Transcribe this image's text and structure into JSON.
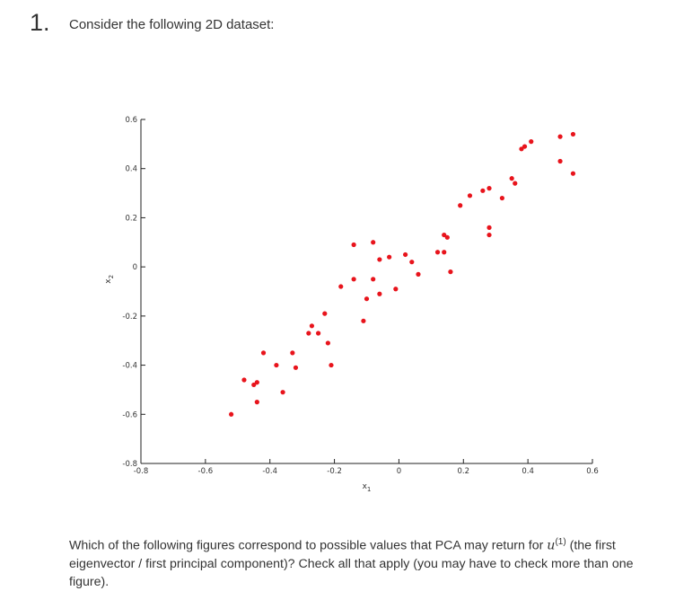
{
  "question": {
    "number": "1.",
    "prompt": "Consider the following 2D dataset:",
    "footer_before": "Which of the following figures correspond to possible values that PCA may return for ",
    "footer_var": "u",
    "footer_sup": "(1)",
    "footer_after": " (the first eigenvector / first principal component)? Check all that apply (you may have to check more than one figure)."
  },
  "chart_data": {
    "type": "scatter",
    "xlabel": "x1",
    "ylabel": "x2",
    "xlim": [
      -0.8,
      0.6
    ],
    "ylim": [
      -0.8,
      0.6
    ],
    "xticks": [
      "-0.8",
      "-0.6",
      "-0.4",
      "-0.2",
      "0",
      "0.2",
      "0.4",
      "0.6"
    ],
    "yticks": [
      "0.6",
      "0.4",
      "0.2",
      "0",
      "-0.2",
      "-0.4",
      "-0.6",
      "-0.8"
    ],
    "point_color": "#e8141c",
    "points": [
      {
        "x": -0.52,
        "y": -0.6
      },
      {
        "x": -0.48,
        "y": -0.46
      },
      {
        "x": -0.45,
        "y": -0.48
      },
      {
        "x": -0.44,
        "y": -0.47
      },
      {
        "x": -0.44,
        "y": -0.55
      },
      {
        "x": -0.42,
        "y": -0.35
      },
      {
        "x": -0.38,
        "y": -0.4
      },
      {
        "x": -0.36,
        "y": -0.51
      },
      {
        "x": -0.33,
        "y": -0.35
      },
      {
        "x": -0.32,
        "y": -0.41
      },
      {
        "x": -0.28,
        "y": -0.27
      },
      {
        "x": -0.27,
        "y": -0.24
      },
      {
        "x": -0.25,
        "y": -0.27
      },
      {
        "x": -0.23,
        "y": -0.19
      },
      {
        "x": -0.22,
        "y": -0.31
      },
      {
        "x": -0.21,
        "y": -0.4
      },
      {
        "x": -0.18,
        "y": -0.08
      },
      {
        "x": -0.14,
        "y": 0.09
      },
      {
        "x": -0.14,
        "y": -0.05
      },
      {
        "x": -0.11,
        "y": -0.22
      },
      {
        "x": -0.1,
        "y": -0.13
      },
      {
        "x": -0.08,
        "y": 0.1
      },
      {
        "x": -0.08,
        "y": -0.05
      },
      {
        "x": -0.06,
        "y": 0.03
      },
      {
        "x": -0.06,
        "y": -0.11
      },
      {
        "x": -0.03,
        "y": 0.04
      },
      {
        "x": -0.01,
        "y": -0.09
      },
      {
        "x": 0.02,
        "y": 0.05
      },
      {
        "x": 0.04,
        "y": 0.02
      },
      {
        "x": 0.06,
        "y": -0.03
      },
      {
        "x": 0.12,
        "y": 0.06
      },
      {
        "x": 0.14,
        "y": 0.06
      },
      {
        "x": 0.14,
        "y": 0.13
      },
      {
        "x": 0.15,
        "y": 0.12
      },
      {
        "x": 0.16,
        "y": -0.02
      },
      {
        "x": 0.19,
        "y": 0.25
      },
      {
        "x": 0.22,
        "y": 0.29
      },
      {
        "x": 0.26,
        "y": 0.31
      },
      {
        "x": 0.28,
        "y": 0.32
      },
      {
        "x": 0.28,
        "y": 0.16
      },
      {
        "x": 0.28,
        "y": 0.13
      },
      {
        "x": 0.32,
        "y": 0.28
      },
      {
        "x": 0.35,
        "y": 0.36
      },
      {
        "x": 0.36,
        "y": 0.34
      },
      {
        "x": 0.38,
        "y": 0.48
      },
      {
        "x": 0.39,
        "y": 0.49
      },
      {
        "x": 0.41,
        "y": 0.51
      },
      {
        "x": 0.5,
        "y": 0.53
      },
      {
        "x": 0.5,
        "y": 0.43
      },
      {
        "x": 0.54,
        "y": 0.54
      },
      {
        "x": 0.54,
        "y": 0.38
      }
    ]
  }
}
